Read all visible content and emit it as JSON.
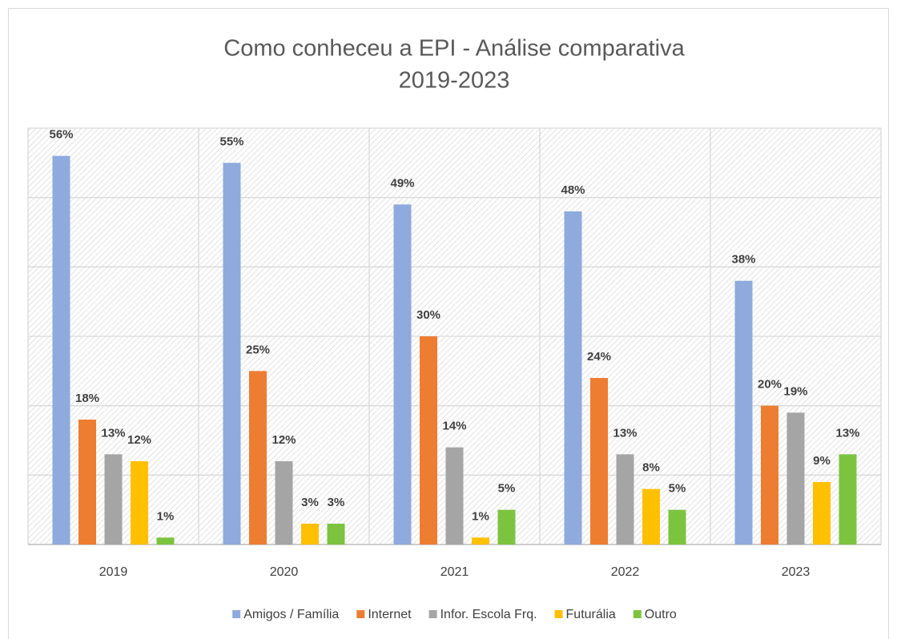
{
  "chart_data": {
    "type": "bar",
    "title": [
      "Como conheceu a EPI - Análise comparativa",
      "2019-2023"
    ],
    "categories": [
      "2019",
      "2020",
      "2021",
      "2022",
      "2023"
    ],
    "ylim": [
      0,
      60
    ],
    "yticks": [
      0,
      10,
      20,
      30,
      40,
      50,
      60
    ],
    "grid": true,
    "legend": "bottom",
    "series": [
      {
        "name": "Amigos / Família",
        "color": "#8faadc",
        "values": [
          56,
          55,
          49,
          48,
          38
        ],
        "value_labels": [
          "56%",
          "55%",
          "49%",
          "48%",
          "38%"
        ]
      },
      {
        "name": "Internet",
        "color": "#ed7d31",
        "values": [
          18,
          25,
          30,
          24,
          20
        ],
        "value_labels": [
          "18%",
          "25%",
          "30%",
          "24%",
          "20%"
        ]
      },
      {
        "name": "Infor. Escola Frq.",
        "color": "#a5a5a5",
        "values": [
          13,
          12,
          14,
          13,
          19
        ],
        "value_labels": [
          "13%",
          "12%",
          "14%",
          "13%",
          "19%"
        ]
      },
      {
        "name": "Futurália",
        "color": "#ffc000",
        "values": [
          12,
          3,
          1,
          8,
          9
        ],
        "value_labels": [
          "12%",
          "3%",
          "1%",
          "8%",
          "9%"
        ]
      },
      {
        "name": "Outro",
        "color": "#7cc440",
        "values": [
          1,
          3,
          5,
          5,
          13
        ],
        "value_labels": [
          "1%",
          "3%",
          "5%",
          "5%",
          "13%"
        ]
      }
    ]
  }
}
